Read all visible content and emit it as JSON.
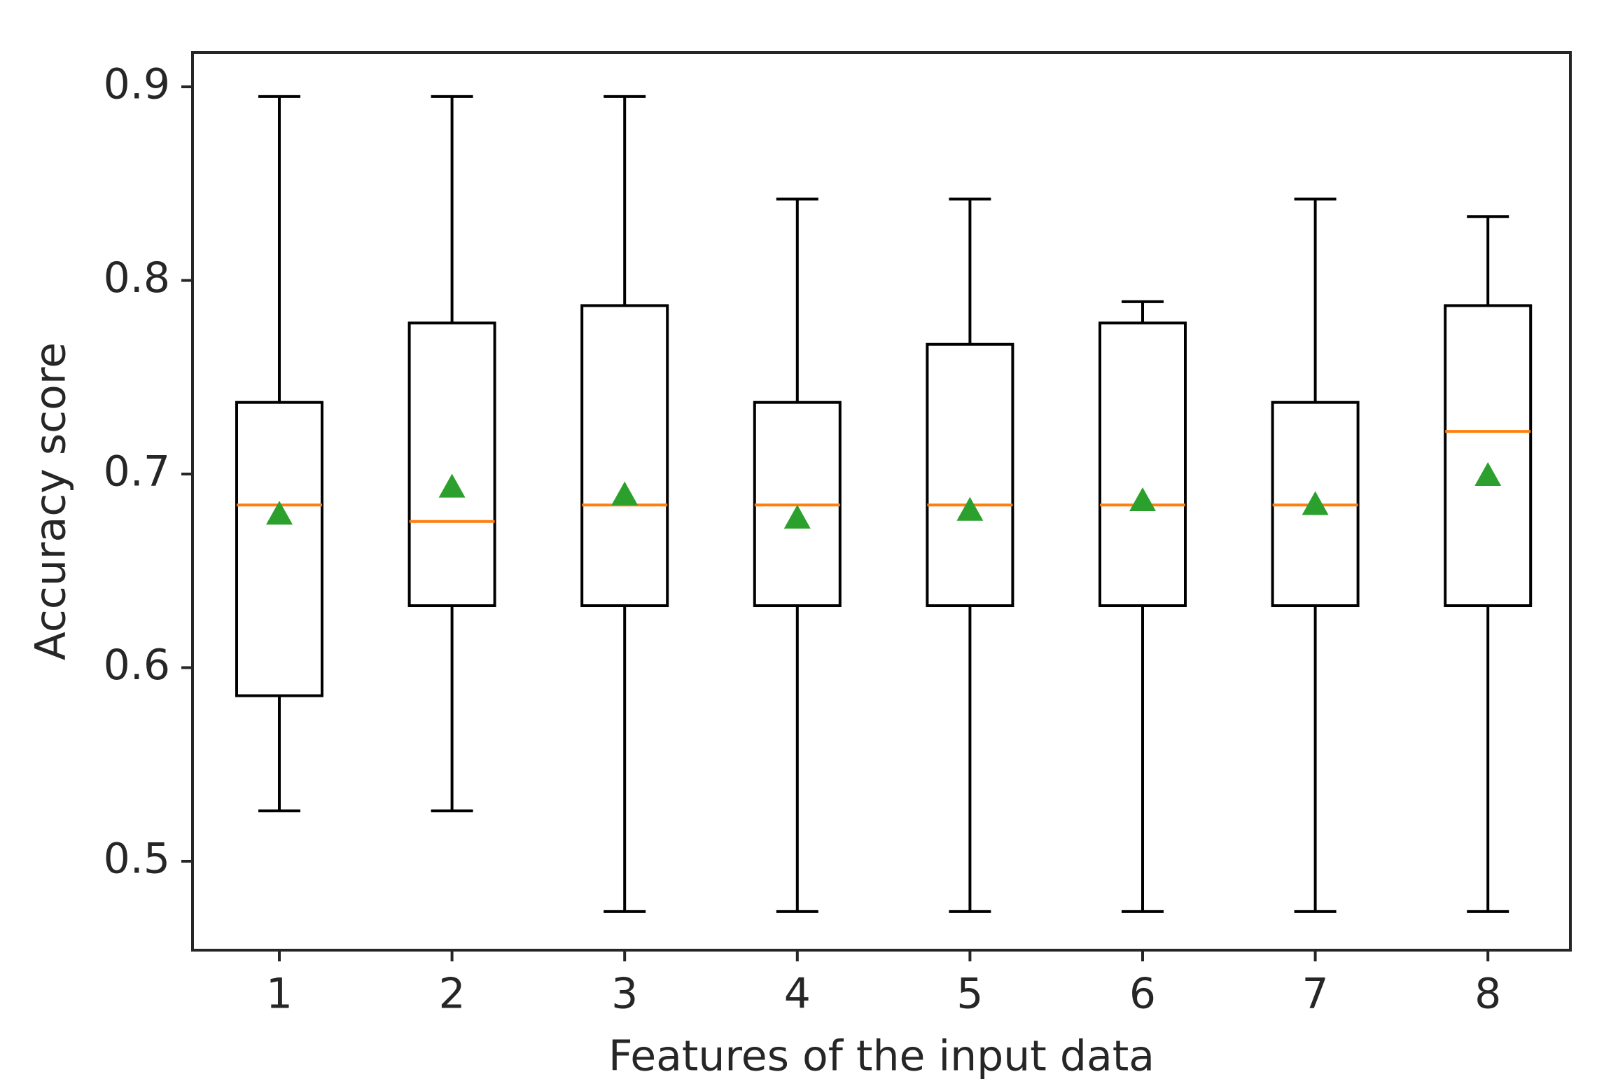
{
  "chart_data": {
    "type": "boxplot",
    "title": "",
    "xlabel": "Features of the input data",
    "ylabel": "Accuracy score",
    "categories": [
      "1",
      "2",
      "3",
      "4",
      "5",
      "6",
      "7",
      "8"
    ],
    "yticks": [
      "0.5",
      "0.6",
      "0.7",
      "0.8",
      "0.9"
    ],
    "ytick_values": [
      0.5,
      0.6,
      0.7,
      0.8,
      0.9
    ],
    "ylim": [
      0.452,
      0.917
    ],
    "grid": false,
    "colors": {
      "box": "#000000",
      "median": "#ff7f0e",
      "mean": "#2ca02c",
      "axis": "#262626"
    },
    "boxes": [
      {
        "label": "1",
        "whisker_low": 0.526,
        "q1": 0.5855,
        "median": 0.684,
        "q3": 0.737,
        "whisker_high": 0.895,
        "mean": 0.68
      },
      {
        "label": "2",
        "whisker_low": 0.526,
        "q1": 0.632,
        "median": 0.6755,
        "q3": 0.778,
        "whisker_high": 0.895,
        "mean": 0.694
      },
      {
        "label": "3",
        "whisker_low": 0.474,
        "q1": 0.632,
        "median": 0.684,
        "q3": 0.787,
        "whisker_high": 0.895,
        "mean": 0.69
      },
      {
        "label": "4",
        "whisker_low": 0.474,
        "q1": 0.632,
        "median": 0.684,
        "q3": 0.737,
        "whisker_high": 0.842,
        "mean": 0.678
      },
      {
        "label": "5",
        "whisker_low": 0.474,
        "q1": 0.632,
        "median": 0.684,
        "q3": 0.767,
        "whisker_high": 0.842,
        "mean": 0.682
      },
      {
        "label": "6",
        "whisker_low": 0.474,
        "q1": 0.632,
        "median": 0.684,
        "q3": 0.778,
        "whisker_high": 0.789,
        "mean": 0.687
      },
      {
        "label": "7",
        "whisker_low": 0.474,
        "q1": 0.632,
        "median": 0.684,
        "q3": 0.737,
        "whisker_high": 0.842,
        "mean": 0.685
      },
      {
        "label": "8",
        "whisker_low": 0.474,
        "q1": 0.632,
        "median": 0.722,
        "q3": 0.787,
        "whisker_high": 0.833,
        "mean": 0.7
      }
    ]
  }
}
